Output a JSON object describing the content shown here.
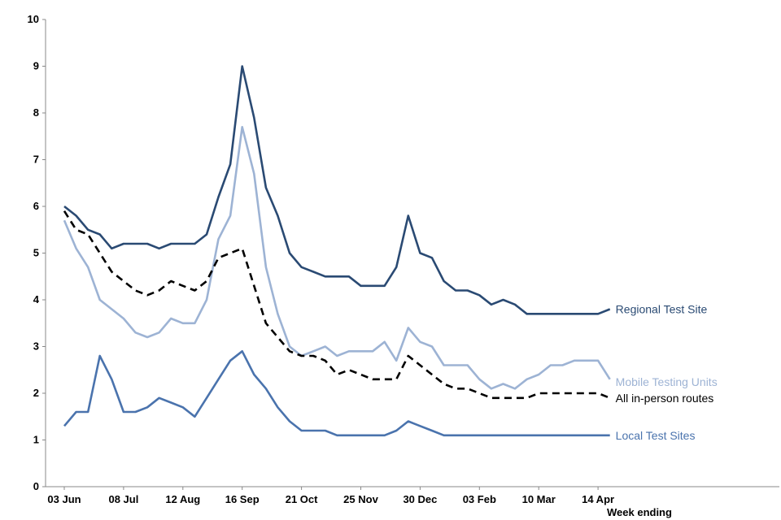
{
  "chart_data": {
    "type": "line",
    "title": "",
    "xlabel": "Week ending",
    "ylabel": "",
    "ylim": [
      0,
      10
    ],
    "yticks": [
      "0",
      "1",
      "2",
      "3",
      "4",
      "5",
      "6",
      "7",
      "8",
      "9",
      "10"
    ],
    "xtick_labels": [
      "03 Jun",
      "08 Jul",
      "12 Aug",
      "16 Sep",
      "21 Oct",
      "25 Nov",
      "30 Dec",
      "03 Feb",
      "10 Mar",
      "14 Apr"
    ],
    "xtick_week_index": [
      0,
      5,
      10,
      15,
      20,
      25,
      30,
      35,
      40,
      45
    ],
    "grid": false,
    "series": [
      {
        "name": "Regional Test Site",
        "color": "#2a4a73",
        "dash": "solid",
        "values": [
          6.0,
          5.8,
          5.5,
          5.4,
          5.1,
          5.2,
          5.2,
          5.2,
          5.1,
          5.2,
          5.2,
          5.2,
          5.4,
          6.2,
          6.9,
          9.0,
          7.9,
          6.4,
          5.8,
          5.0,
          4.7,
          4.6,
          4.5,
          4.5,
          4.5,
          4.3,
          4.3,
          4.3,
          4.7,
          5.8,
          5.0,
          4.9,
          4.4,
          4.2,
          4.2,
          4.1,
          3.9,
          4.0,
          3.9,
          3.7,
          3.7,
          3.7,
          3.7,
          3.7,
          3.7,
          3.7,
          3.8
        ]
      },
      {
        "name": "Mobile Testing Units",
        "color": "#9db3d4",
        "dash": "solid",
        "values": [
          5.7,
          5.1,
          4.7,
          4.0,
          3.8,
          3.6,
          3.3,
          3.2,
          3.3,
          3.6,
          3.5,
          3.5,
          4.0,
          5.3,
          5.8,
          7.7,
          6.7,
          4.7,
          3.7,
          3.0,
          2.8,
          2.9,
          3.0,
          2.8,
          2.9,
          2.9,
          2.9,
          3.1,
          2.7,
          3.4,
          3.1,
          3.0,
          2.6,
          2.6,
          2.6,
          2.3,
          2.1,
          2.2,
          2.1,
          2.3,
          2.4,
          2.6,
          2.6,
          2.7,
          2.7,
          2.7,
          2.3
        ]
      },
      {
        "name": "All in-person routes",
        "color": "#000000",
        "dash": "dashed",
        "values": [
          5.9,
          5.5,
          5.4,
          5.0,
          4.6,
          4.4,
          4.2,
          4.1,
          4.2,
          4.4,
          4.3,
          4.2,
          4.4,
          4.9,
          5.0,
          5.1,
          4.3,
          3.5,
          3.2,
          2.9,
          2.8,
          2.8,
          2.7,
          2.4,
          2.5,
          2.4,
          2.3,
          2.3,
          2.3,
          2.8,
          2.6,
          2.4,
          2.2,
          2.1,
          2.1,
          2.0,
          1.9,
          1.9,
          1.9,
          1.9,
          2.0,
          2.0,
          2.0,
          2.0,
          2.0,
          2.0,
          1.9
        ]
      },
      {
        "name": "Local Test Sites",
        "color": "#4a73ad",
        "dash": "solid",
        "values": [
          1.3,
          1.6,
          1.6,
          2.8,
          2.3,
          1.6,
          1.6,
          1.7,
          1.9,
          1.8,
          1.7,
          1.5,
          1.9,
          2.3,
          2.7,
          2.9,
          2.4,
          2.1,
          1.7,
          1.4,
          1.2,
          1.2,
          1.2,
          1.1,
          1.1,
          1.1,
          1.1,
          1.1,
          1.2,
          1.4,
          1.3,
          1.2,
          1.1,
          1.1,
          1.1,
          1.1,
          1.1,
          1.1,
          1.1,
          1.1,
          1.1,
          1.1,
          1.1,
          1.1,
          1.1,
          1.1,
          1.1
        ]
      }
    ]
  }
}
